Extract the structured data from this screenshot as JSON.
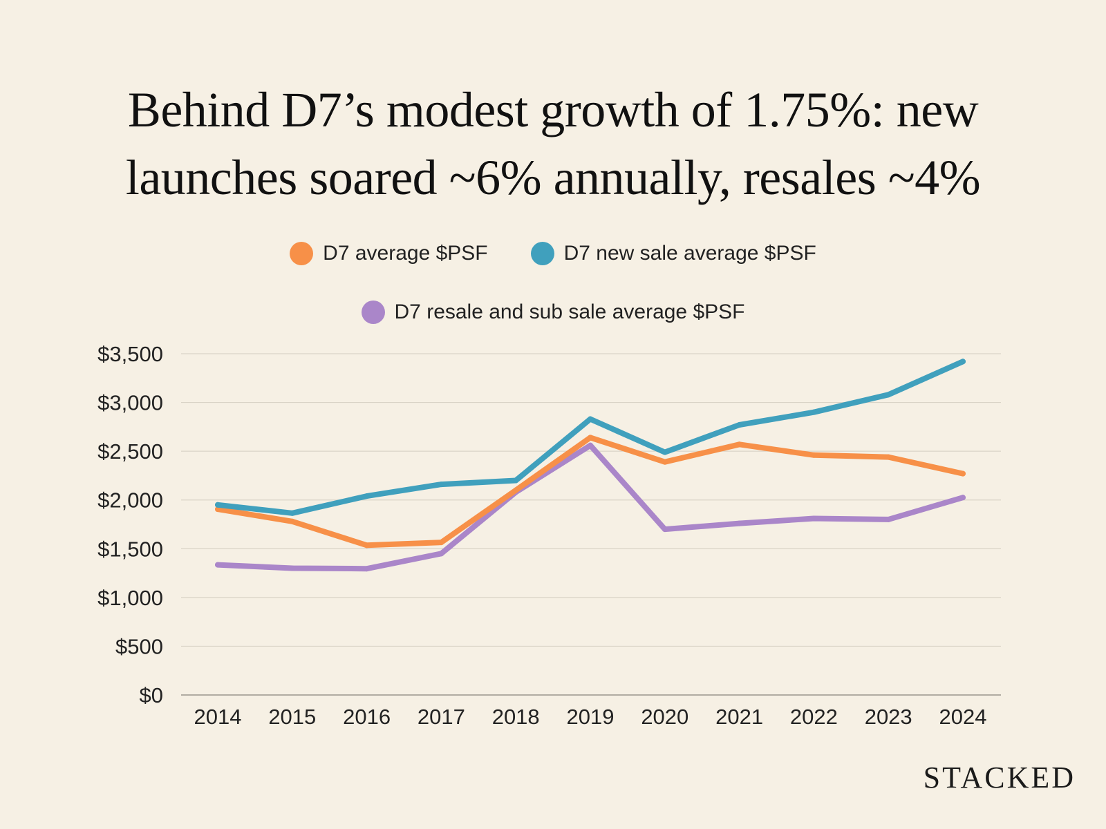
{
  "title_line1": "Behind D7’s modest growth of 1.75%: new",
  "title_line2": "launches soared ~6% annually, resales ~4%",
  "brand": "STACKED",
  "chart_data": {
    "type": "line",
    "title": "Behind D7’s modest growth of 1.75%: new launches soared ~6% annually, resales ~4%",
    "xlabel": "",
    "ylabel": "",
    "ylim": [
      0,
      3500
    ],
    "grid": true,
    "legend_position": "top-center",
    "categories": [
      "2014",
      "2015",
      "2016",
      "2017",
      "2018",
      "2019",
      "2020",
      "2021",
      "2022",
      "2023",
      "2024"
    ],
    "y_ticks": [
      0,
      500,
      1000,
      1500,
      2000,
      2500,
      3000,
      3500
    ],
    "y_tick_labels": [
      "$0",
      "$500",
      "$1,000",
      "$1,500",
      "$2,000",
      "$2,500",
      "$3,000",
      "$3,500"
    ],
    "series": [
      {
        "name": "D7 average $PSF",
        "color": "#f79048",
        "values": [
          1905,
          1780,
          1535,
          1565,
          2100,
          2640,
          2390,
          2570,
          2460,
          2440,
          2270
        ]
      },
      {
        "name": "D7 new sale average $PSF",
        "color": "#40a0bd",
        "values": [
          1950,
          1865,
          2040,
          2160,
          2200,
          2830,
          2490,
          2770,
          2900,
          3080,
          3420
        ]
      },
      {
        "name": "D7 resale and sub sale average $PSF",
        "color": "#aa86c9",
        "values": [
          1335,
          1300,
          1295,
          1450,
          2080,
          2560,
          1700,
          1760,
          1810,
          1800,
          2025
        ]
      }
    ]
  }
}
